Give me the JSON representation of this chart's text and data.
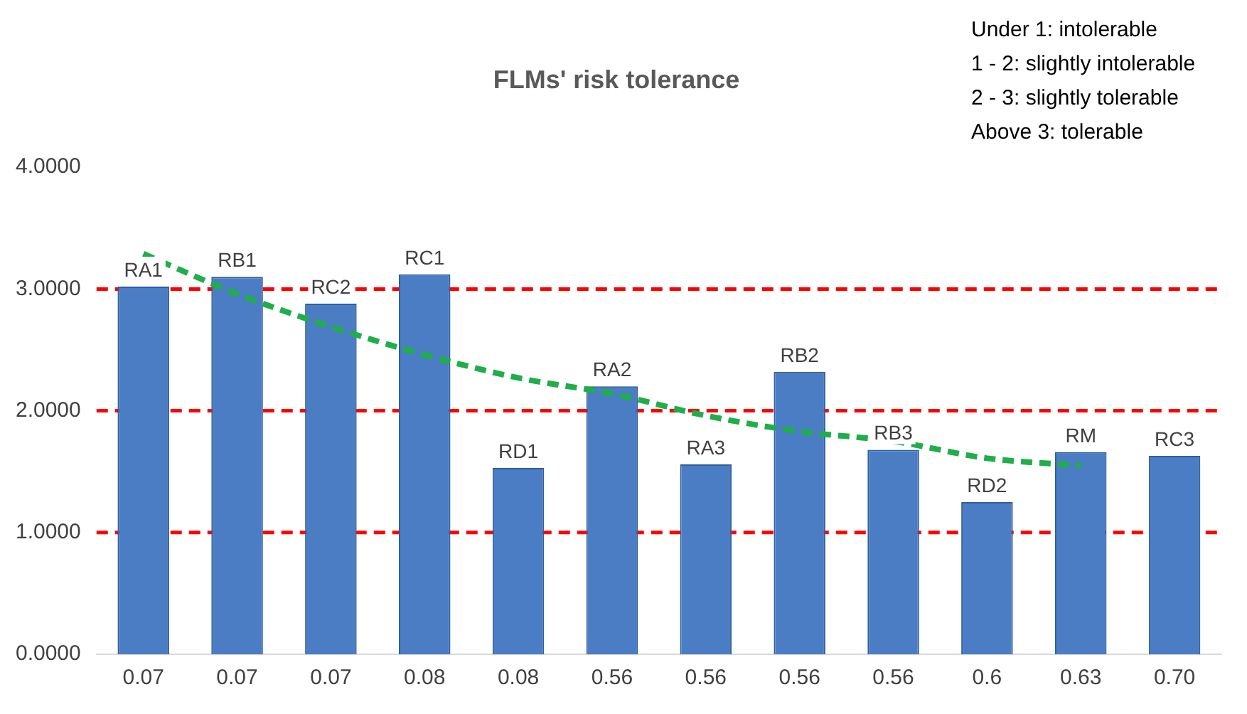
{
  "chart_data": {
    "type": "bar",
    "title": "FLMs' risk tolerance",
    "categories": [
      "0.07",
      "0.07",
      "0.07",
      "0.08",
      "0.08",
      "0.56",
      "0.56",
      "0.56",
      "0.56",
      "0.6",
      "0.63",
      "0.70"
    ],
    "series": [
      {
        "color": "#4a7dc4",
        "values": [
          3.02,
          3.1,
          2.88,
          3.12,
          1.53,
          2.2,
          1.56,
          2.32,
          1.68,
          1.25,
          1.66,
          1.63
        ],
        "value_labels": [
          "RA1",
          "RB1",
          "RC2",
          "RC1",
          "RD1",
          "RA2",
          "RA3",
          "RB2",
          "RB3",
          "RD2",
          "RM",
          "RC3"
        ]
      },
      {
        "type": "line",
        "color": "#1fae4b",
        "line_style": "dashed",
        "marker": "none",
        "values": [
          3.29,
          2.96,
          2.69,
          2.46,
          2.27,
          2.14,
          1.96,
          1.83,
          1.75,
          1.61,
          1.55,
          null
        ]
      }
    ],
    "ylim": [
      0,
      4
    ],
    "yticks": [
      {
        "value": 0,
        "label": "0.0000"
      },
      {
        "value": 1,
        "label": "1.0000"
      },
      {
        "value": 2,
        "label": "2.0000"
      },
      {
        "value": 3,
        "label": "3.0000"
      },
      {
        "value": 4,
        "label": "4.0000"
      }
    ],
    "grid": false,
    "legend": false,
    "ref_lines": [
      {
        "axis": "y",
        "value": 1,
        "color": "#ff0000",
        "line_style": "dashed"
      },
      {
        "axis": "y",
        "value": 2,
        "color": "#ff0000",
        "line_style": "dashed"
      },
      {
        "axis": "y",
        "value": 3,
        "color": "#ff0000",
        "line_style": "dashed"
      }
    ],
    "annotations": [
      "Under 1: intolerable",
      "1 - 2: slightly intolerable",
      "2 - 3: slightly tolerable",
      "Above 3: tolerable"
    ]
  }
}
